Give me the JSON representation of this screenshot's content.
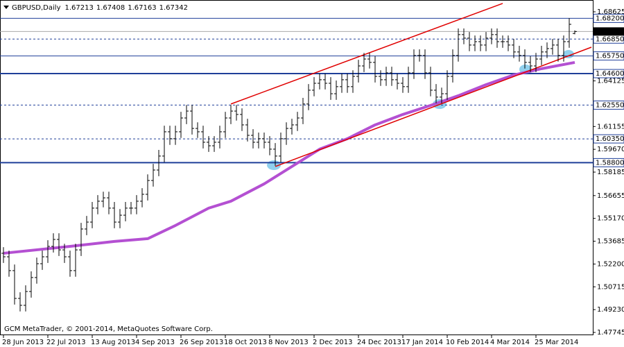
{
  "chart_data": {
    "type": "ohlc",
    "symbol": "GBPUSD,Daily",
    "footer": "GCM MetaTrader, © 2001-2014, MetaQuotes Software Corp.",
    "bar_color": "#000000",
    "categories": [
      "28 Jun 2013",
      null,
      null,
      null,
      null,
      null,
      null,
      null,
      "22 Jul 2013",
      null,
      null,
      null,
      null,
      null,
      null,
      null,
      "13 Aug 2013",
      null,
      null,
      null,
      null,
      null,
      null,
      null,
      "4 Sep 2013",
      null,
      null,
      null,
      null,
      null,
      null,
      null,
      "26 Sep 2013",
      null,
      null,
      null,
      null,
      null,
      null,
      null,
      "18 Oct 2013",
      null,
      null,
      null,
      null,
      null,
      null,
      null,
      "8 Nov 2013",
      null,
      null,
      null,
      null,
      null,
      null,
      null,
      "2 Dec 2013",
      null,
      null,
      null,
      null,
      null,
      null,
      null,
      "24 Dec 2013",
      null,
      null,
      null,
      null,
      null,
      null,
      null,
      "17 Jan 2014",
      null,
      null,
      null,
      null,
      null,
      null,
      null,
      "10 Feb 2014",
      null,
      null,
      null,
      null,
      null,
      null,
      null,
      "4 Mar 2014",
      null,
      null,
      null,
      null,
      null,
      null,
      null,
      "25 Mar 2014",
      null,
      null,
      null,
      null,
      null,
      null,
      null
    ],
    "open": [
      1.529,
      1.5267,
      1.5177,
      1.4996,
      1.4951,
      1.5041,
      1.5132,
      1.5222,
      1.5267,
      1.5335,
      1.538,
      1.5312,
      1.5267,
      1.5177,
      1.5312,
      1.5448,
      1.5493,
      1.5584,
      1.5629,
      1.5651,
      1.5584,
      1.5493,
      1.5538,
      1.5584,
      1.5584,
      1.5629,
      1.5674,
      1.5764,
      1.5832,
      1.5923,
      1.6081,
      1.6036,
      1.6081,
      1.6171,
      1.6216,
      1.6103,
      1.6081,
      1.6013,
      1.599,
      1.6013,
      1.6081,
      1.6171,
      1.6216,
      1.6194,
      1.6126,
      1.6058,
      1.6013,
      1.6036,
      1.6013,
      1.5968,
      1.5923,
      1.6036,
      1.6103,
      1.6126,
      1.6171,
      1.6262,
      1.6352,
      1.6397,
      1.642,
      1.6397,
      1.6329,
      1.6375,
      1.642,
      1.6375,
      1.6442,
      1.651,
      1.6555,
      1.6533,
      1.6442,
      1.642,
      1.6465,
      1.642,
      1.6397,
      1.6375,
      1.6465,
      1.6578,
      1.6578,
      1.6465,
      1.6352,
      1.6307,
      1.6329,
      1.6442,
      1.6578,
      1.6714,
      1.6691,
      1.6646,
      1.6668,
      1.6646,
      1.6691,
      1.6714,
      1.6668,
      1.6668,
      1.6646,
      1.6601,
      1.6578,
      1.6533,
      1.651,
      1.6555,
      1.6601,
      1.6623,
      1.6646,
      1.6578,
      1.6668,
      1.67213
    ],
    "high": [
      1.533,
      1.5307,
      1.5217,
      1.5036,
      1.5081,
      1.5172,
      1.5262,
      1.5307,
      1.5375,
      1.542,
      1.542,
      1.5352,
      1.5307,
      1.5352,
      1.5488,
      1.5533,
      1.5624,
      1.5669,
      1.5691,
      1.5691,
      1.5624,
      1.5578,
      1.5624,
      1.5624,
      1.5669,
      1.5714,
      1.5804,
      1.5872,
      1.5963,
      1.6121,
      1.6121,
      1.6121,
      1.6211,
      1.6256,
      1.6256,
      1.6143,
      1.6121,
      1.6053,
      1.6053,
      1.6121,
      1.6211,
      1.6256,
      1.6256,
      1.6234,
      1.6166,
      1.6098,
      1.6076,
      1.6076,
      1.6053,
      1.6008,
      1.6076,
      1.6143,
      1.6166,
      1.6211,
      1.6302,
      1.6392,
      1.6437,
      1.646,
      1.646,
      1.6437,
      1.6415,
      1.646,
      1.646,
      1.6482,
      1.655,
      1.6595,
      1.6595,
      1.6573,
      1.6482,
      1.6505,
      1.6505,
      1.646,
      1.6437,
      1.6505,
      1.6618,
      1.6618,
      1.6618,
      1.6505,
      1.6392,
      1.6369,
      1.6482,
      1.6618,
      1.6754,
      1.6754,
      1.6731,
      1.6708,
      1.6708,
      1.6731,
      1.6754,
      1.6754,
      1.6708,
      1.6708,
      1.6686,
      1.6641,
      1.6618,
      1.6573,
      1.6595,
      1.6641,
      1.6663,
      1.6686,
      1.6686,
      1.6708,
      1.6821,
      1.67408
    ],
    "low": [
      1.5227,
      1.5137,
      1.4956,
      1.4911,
      1.4911,
      1.5001,
      1.5092,
      1.5182,
      1.5227,
      1.5295,
      1.5272,
      1.5227,
      1.5137,
      1.5137,
      1.5272,
      1.5408,
      1.5453,
      1.5544,
      1.5589,
      1.5544,
      1.5453,
      1.5453,
      1.5498,
      1.5544,
      1.5544,
      1.5589,
      1.5634,
      1.5724,
      1.5792,
      1.5883,
      1.5996,
      1.5996,
      1.6041,
      1.6131,
      1.6063,
      1.6041,
      1.5973,
      1.595,
      1.595,
      1.5973,
      1.6041,
      1.6131,
      1.6154,
      1.6086,
      1.6018,
      1.5973,
      1.5973,
      1.5973,
      1.5928,
      1.586,
      1.5883,
      1.5996,
      1.6063,
      1.6086,
      1.6131,
      1.6222,
      1.6312,
      1.6357,
      1.6357,
      1.6289,
      1.6289,
      1.6335,
      1.6335,
      1.6335,
      1.6402,
      1.647,
      1.6493,
      1.6402,
      1.638,
      1.638,
      1.638,
      1.6357,
      1.6335,
      1.6335,
      1.6425,
      1.6538,
      1.6425,
      1.6312,
      1.6267,
      1.6267,
      1.6289,
      1.6402,
      1.6538,
      1.6651,
      1.6606,
      1.6606,
      1.6606,
      1.6606,
      1.6651,
      1.6628,
      1.6628,
      1.6606,
      1.6561,
      1.6538,
      1.6493,
      1.647,
      1.647,
      1.6515,
      1.6561,
      1.6583,
      1.6538,
      1.6538,
      1.6628,
      1.67163
    ],
    "close": [
      1.5267,
      1.5177,
      1.4996,
      1.4951,
      1.5041,
      1.5132,
      1.5222,
      1.5267,
      1.5335,
      1.538,
      1.5312,
      1.5267,
      1.5177,
      1.5312,
      1.5448,
      1.5493,
      1.5584,
      1.5629,
      1.5651,
      1.5584,
      1.5493,
      1.5538,
      1.5584,
      1.5584,
      1.5629,
      1.5674,
      1.5764,
      1.5832,
      1.5923,
      1.6081,
      1.6036,
      1.6081,
      1.6171,
      1.6216,
      1.6103,
      1.6081,
      1.6013,
      1.599,
      1.6013,
      1.6081,
      1.6171,
      1.6216,
      1.6194,
      1.6126,
      1.6058,
      1.6013,
      1.6036,
      1.6013,
      1.5968,
      1.5923,
      1.6036,
      1.6103,
      1.6126,
      1.6171,
      1.6262,
      1.6352,
      1.6397,
      1.642,
      1.6397,
      1.6329,
      1.6375,
      1.642,
      1.6375,
      1.6442,
      1.651,
      1.6555,
      1.6533,
      1.6442,
      1.642,
      1.6465,
      1.642,
      1.6397,
      1.6375,
      1.6465,
      1.6578,
      1.6578,
      1.6465,
      1.6352,
      1.6307,
      1.6329,
      1.6442,
      1.6578,
      1.6714,
      1.6691,
      1.6646,
      1.6668,
      1.6646,
      1.6691,
      1.6714,
      1.6668,
      1.6668,
      1.6646,
      1.6601,
      1.6578,
      1.6533,
      1.651,
      1.6555,
      1.6601,
      1.6623,
      1.6646,
      1.6578,
      1.6668,
      1.6781,
      1.67342
    ],
    "moving_average": {
      "color": "#b450d2",
      "x": [
        0,
        12,
        20,
        26,
        31,
        37,
        41,
        47,
        52,
        57,
        62,
        67,
        72,
        77,
        82,
        87,
        92,
        97,
        103
      ],
      "values": [
        1.529,
        1.5335,
        1.5367,
        1.5385,
        1.5471,
        1.5584,
        1.5629,
        1.5742,
        1.5855,
        1.5968,
        1.6036,
        1.6126,
        1.6194,
        1.6253,
        1.6316,
        1.6388,
        1.6451,
        1.6492,
        1.6533
      ]
    },
    "trendlines": [
      {
        "color": "#e00000",
        "x": [
          41,
          90
        ],
        "y": [
          1.6262,
          1.6917
        ]
      },
      {
        "color": "#e00000",
        "x": [
          49,
          106
        ],
        "y": [
          1.5855,
          1.6632
        ]
      }
    ],
    "level_color": "#1f3f99",
    "levels": [
      {
        "value": 1.682,
        "label": "1.68200",
        "style": "solid"
      },
      {
        "value": 1.6685,
        "label": "1.66850",
        "style": "dashed"
      },
      {
        "value": 1.6575,
        "label": "1.65750",
        "style": "solid"
      },
      {
        "value": 1.646,
        "label": "1.64600",
        "style": "thick"
      },
      {
        "value": 1.6255,
        "label": "1.62550",
        "style": "dashed"
      },
      {
        "value": 1.6035,
        "label": "1.60350",
        "style": "dashed"
      },
      {
        "value": 1.588,
        "label": "1.58800",
        "style": "thick"
      }
    ],
    "ylim": [
      1.47564,
      1.69303
    ],
    "yticks": [
      1.68625,
      1.64125,
      1.61155,
      {
        "value": 1.5967,
        "label": "1.59670"
      },
      1.58185,
      1.56655,
      {
        "value": 1.5517,
        "label": "1.55170"
      },
      1.53685,
      {
        "value": 1.522,
        "label": "1.52200"
      },
      1.50715,
      {
        "value": 1.4923,
        "label": "1.49230"
      },
      1.47745
    ]
  }
}
